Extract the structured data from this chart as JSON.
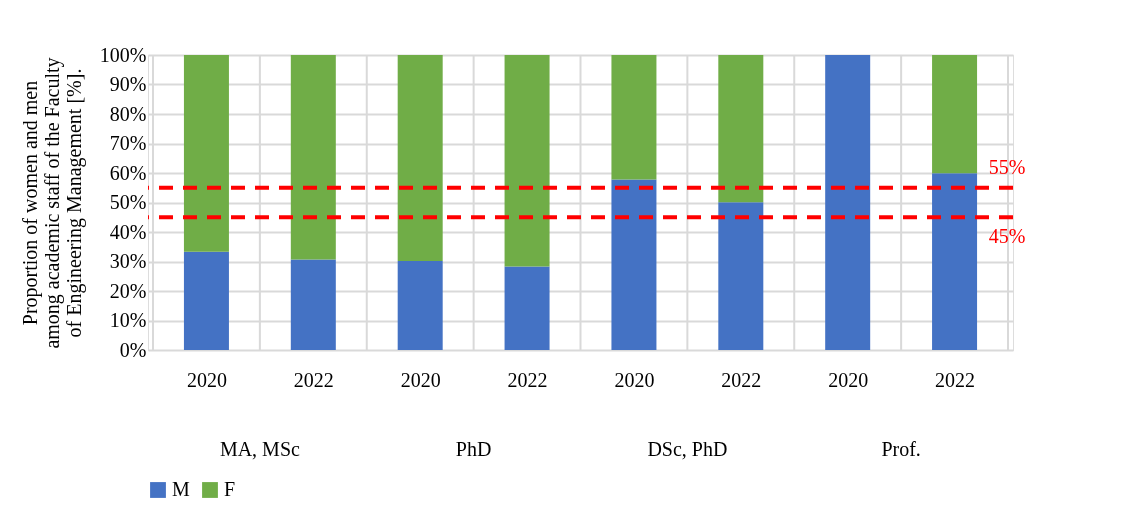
{
  "chart_data": {
    "type": "bar",
    "stacked": true,
    "ylabel": "Proportion of women and men\namong academic staff of the Faculty\nof Engineering Management [%].",
    "categories": [
      "2020",
      "2022",
      "2020",
      "2022",
      "2020",
      "2022",
      "2020",
      "2022"
    ],
    "series": [
      {
        "name": "M",
        "color": "#4472c4",
        "values": [
          33.3,
          30.7,
          30.2,
          28.3,
          57.8,
          50.1,
          100,
          59.9
        ]
      },
      {
        "name": "F",
        "color": "#70ad47",
        "values": [
          66.7,
          69.3,
          69.8,
          71.7,
          42.2,
          49.9,
          0,
          40.1
        ]
      }
    ],
    "ylim": [
      0,
      100
    ],
    "yticks": [
      {
        "value": 0,
        "label": "0%"
      },
      {
        "value": 10,
        "label": "10%"
      },
      {
        "value": 20,
        "label": "20%"
      },
      {
        "value": 30,
        "label": "30%"
      },
      {
        "value": 40,
        "label": "40%"
      },
      {
        "value": 50,
        "label": "50%"
      },
      {
        "value": 60,
        "label": "60%"
      },
      {
        "value": 70,
        "label": "70%"
      },
      {
        "value": 80,
        "label": "80%"
      },
      {
        "value": 90,
        "label": "90%"
      },
      {
        "value": 100,
        "label": "100%"
      }
    ],
    "ref_lines": [
      {
        "axis": "y",
        "value": 55,
        "label": "55%",
        "color": "#ff0000",
        "line_style": "dashed"
      },
      {
        "axis": "y",
        "value": 45,
        "label": "45%",
        "color": "#ff0000",
        "line_style": "dashed"
      }
    ],
    "annotations": [
      "MA, MSc",
      "PhD",
      "DSc, PhD",
      "Prof."
    ],
    "grid": true,
    "legend": "bottom"
  }
}
